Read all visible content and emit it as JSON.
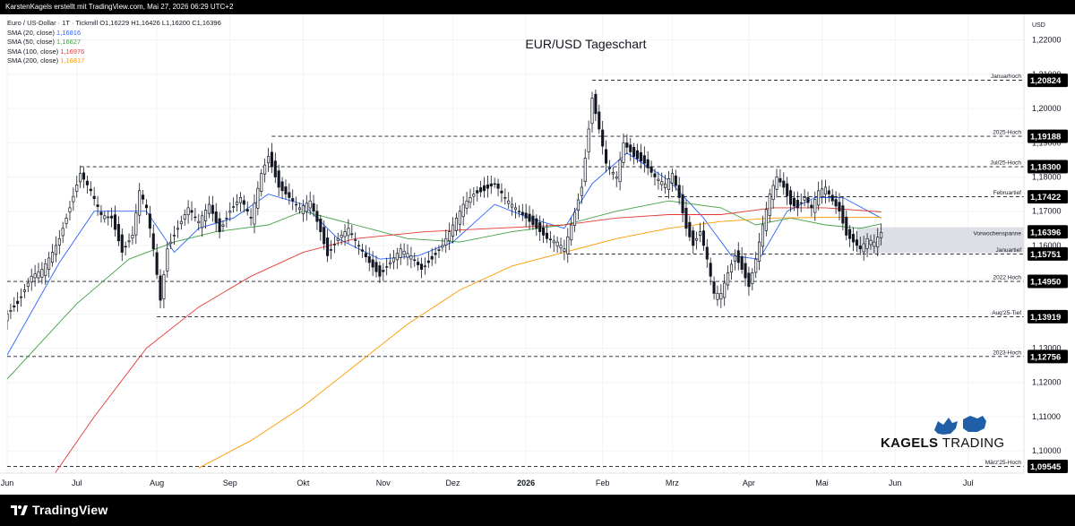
{
  "header": {
    "credit": "KarstenKagels erstellt mit TradingView.com, Mai 27, 2026 06:29 UTC+2"
  },
  "legend": {
    "symbol_line": "Euro / US-Dollar · 1T · Tickmill",
    "ohlc": "O1,16229  H1,16426  L1,16200  C1,16396",
    "items": [
      {
        "label": "SMA (20, close)",
        "value": "1,16816",
        "color": "#2962ff"
      },
      {
        "label": "SMA (50, close)",
        "value": "1,16627",
        "color": "#43a047"
      },
      {
        "label": "SMA (100, close)",
        "value": "1,16976",
        "color": "#e53935"
      },
      {
        "label": "SMA (200, close)",
        "value": "1,16817",
        "color": "#ff9800"
      }
    ]
  },
  "footer": {
    "logo_text": "TradingView"
  },
  "brand": {
    "word1": "KAGELS",
    "word2": "TRADING"
  },
  "chart_data": {
    "type": "line",
    "title": "EUR/USD Tageschart",
    "currency_label": "USD",
    "y_ticks": [
      1.1,
      1.11,
      1.12,
      1.13,
      1.14,
      1.15,
      1.16,
      1.17,
      1.18,
      1.19,
      1.2,
      1.21,
      1.22
    ],
    "y_tick_labels": [
      "1,10000",
      "1,11000",
      "1,12000",
      "1,13000",
      "1,14000",
      "1,15000",
      "1,16000",
      "1,17000",
      "1,18000",
      "1,19000",
      "1,20000",
      "1,21000",
      "1,22000"
    ],
    "ylim": [
      1.0935,
      1.2275
    ],
    "x_ticks": [
      {
        "label": "Jun",
        "day": 0
      },
      {
        "label": "Jul",
        "day": 20
      },
      {
        "label": "Aug",
        "day": 43
      },
      {
        "label": "Sep",
        "day": 64
      },
      {
        "label": "Okt",
        "day": 85
      },
      {
        "label": "Nov",
        "day": 108
      },
      {
        "label": "Dez",
        "day": 128
      },
      {
        "label": "2026",
        "day": 149
      },
      {
        "label": "Feb",
        "day": 171
      },
      {
        "label": "Mrz",
        "day": 191
      },
      {
        "label": "Apr",
        "day": 213
      },
      {
        "label": "Mai",
        "day": 234
      },
      {
        "label": "Jun",
        "day": 255
      },
      {
        "label": "Jul",
        "day": 276
      }
    ],
    "xlim": [
      0,
      292
    ],
    "levels": [
      {
        "name": "Januarhoch",
        "value": 1.20824,
        "label": "1,20824",
        "start_day": 168
      },
      {
        "name": "2025-Hoch",
        "value": 1.19188,
        "label": "1,19188",
        "start_day": 76
      },
      {
        "name": "Jul/25-Hoch",
        "value": 1.183,
        "label": "1,18300",
        "start_day": 21
      },
      {
        "name": "Februartief",
        "value": 1.17422,
        "label": "1,17422",
        "start_day": 187
      },
      {
        "name": "Januartief",
        "value": 1.15751,
        "label": "1,15751",
        "start_day": 161
      },
      {
        "name": "2022 Hoch",
        "value": 1.1495,
        "label": "1,14950",
        "start_day": 0
      },
      {
        "name": "Aug'25-Tief",
        "value": 1.13919,
        "label": "1,13919",
        "start_day": 43
      },
      {
        "name": "2023-Hoch",
        "value": 1.12756,
        "label": "1,12756",
        "start_day": 0
      },
      {
        "name": "März'25-Hoch",
        "value": 1.09545,
        "label": "1,09545",
        "start_day": 0
      }
    ],
    "current_price": {
      "value": 1.16396,
      "label": "1,16396"
    },
    "range_box": {
      "name": "Vorwochenspanne",
      "start_day": 244,
      "end_day": 253,
      "low": 1.1578,
      "high": 1.1653
    },
    "price_anchors": [
      {
        "day": 0,
        "value": 1.14
      },
      {
        "day": 3,
        "value": 1.143
      },
      {
        "day": 7,
        "value": 1.151
      },
      {
        "day": 10,
        "value": 1.153
      },
      {
        "day": 13,
        "value": 1.158
      },
      {
        "day": 15,
        "value": 1.162
      },
      {
        "day": 18,
        "value": 1.171
      },
      {
        "day": 21,
        "value": 1.181
      },
      {
        "day": 24,
        "value": 1.176
      },
      {
        "day": 27,
        "value": 1.169
      },
      {
        "day": 30,
        "value": 1.168
      },
      {
        "day": 33,
        "value": 1.158
      },
      {
        "day": 36,
        "value": 1.163
      },
      {
        "day": 38,
        "value": 1.176
      },
      {
        "day": 40,
        "value": 1.171
      },
      {
        "day": 42,
        "value": 1.159
      },
      {
        "day": 44,
        "value": 1.144
      },
      {
        "day": 46,
        "value": 1.159
      },
      {
        "day": 49,
        "value": 1.165
      },
      {
        "day": 52,
        "value": 1.171
      },
      {
        "day": 55,
        "value": 1.167
      },
      {
        "day": 58,
        "value": 1.172
      },
      {
        "day": 61,
        "value": 1.164
      },
      {
        "day": 64,
        "value": 1.17
      },
      {
        "day": 67,
        "value": 1.174
      },
      {
        "day": 70,
        "value": 1.168
      },
      {
        "day": 73,
        "value": 1.181
      },
      {
        "day": 75,
        "value": 1.186
      },
      {
        "day": 78,
        "value": 1.177
      },
      {
        "day": 81,
        "value": 1.174
      },
      {
        "day": 84,
        "value": 1.171
      },
      {
        "day": 87,
        "value": 1.173
      },
      {
        "day": 90,
        "value": 1.164
      },
      {
        "day": 92,
        "value": 1.157
      },
      {
        "day": 95,
        "value": 1.162
      },
      {
        "day": 98,
        "value": 1.165
      },
      {
        "day": 101,
        "value": 1.16
      },
      {
        "day": 104,
        "value": 1.155
      },
      {
        "day": 107,
        "value": 1.151
      },
      {
        "day": 110,
        "value": 1.155
      },
      {
        "day": 113,
        "value": 1.159
      },
      {
        "day": 116,
        "value": 1.157
      },
      {
        "day": 119,
        "value": 1.153
      },
      {
        "day": 122,
        "value": 1.156
      },
      {
        "day": 125,
        "value": 1.16
      },
      {
        "day": 128,
        "value": 1.166
      },
      {
        "day": 131,
        "value": 1.172
      },
      {
        "day": 134,
        "value": 1.175
      },
      {
        "day": 137,
        "value": 1.176
      },
      {
        "day": 140,
        "value": 1.178
      },
      {
        "day": 143,
        "value": 1.174
      },
      {
        "day": 146,
        "value": 1.171
      },
      {
        "day": 149,
        "value": 1.168
      },
      {
        "day": 152,
        "value": 1.165
      },
      {
        "day": 155,
        "value": 1.162
      },
      {
        "day": 158,
        "value": 1.161
      },
      {
        "day": 160,
        "value": 1.159
      },
      {
        "day": 162,
        "value": 1.166
      },
      {
        "day": 165,
        "value": 1.177
      },
      {
        "day": 167,
        "value": 1.194
      },
      {
        "day": 168,
        "value": 1.203
      },
      {
        "day": 170,
        "value": 1.194
      },
      {
        "day": 172,
        "value": 1.184
      },
      {
        "day": 175,
        "value": 1.18
      },
      {
        "day": 177,
        "value": 1.19
      },
      {
        "day": 180,
        "value": 1.186
      },
      {
        "day": 183,
        "value": 1.184
      },
      {
        "day": 186,
        "value": 1.18
      },
      {
        "day": 189,
        "value": 1.178
      },
      {
        "day": 191,
        "value": 1.181
      },
      {
        "day": 193,
        "value": 1.174
      },
      {
        "day": 195,
        "value": 1.165
      },
      {
        "day": 197,
        "value": 1.16
      },
      {
        "day": 199,
        "value": 1.164
      },
      {
        "day": 201,
        "value": 1.156
      },
      {
        "day": 203,
        "value": 1.146
      },
      {
        "day": 205,
        "value": 1.146
      },
      {
        "day": 207,
        "value": 1.152
      },
      {
        "day": 209,
        "value": 1.157
      },
      {
        "day": 211,
        "value": 1.153
      },
      {
        "day": 213,
        "value": 1.148
      },
      {
        "day": 215,
        "value": 1.156
      },
      {
        "day": 217,
        "value": 1.166
      },
      {
        "day": 219,
        "value": 1.175
      },
      {
        "day": 221,
        "value": 1.18
      },
      {
        "day": 223,
        "value": 1.177
      },
      {
        "day": 225,
        "value": 1.172
      },
      {
        "day": 227,
        "value": 1.171
      },
      {
        "day": 229,
        "value": 1.174
      },
      {
        "day": 231,
        "value": 1.171
      },
      {
        "day": 233,
        "value": 1.176
      },
      {
        "day": 235,
        "value": 1.177
      },
      {
        "day": 237,
        "value": 1.173
      },
      {
        "day": 239,
        "value": 1.17
      },
      {
        "day": 241,
        "value": 1.163
      },
      {
        "day": 243,
        "value": 1.161
      },
      {
        "day": 245,
        "value": 1.159
      },
      {
        "day": 247,
        "value": 1.162
      },
      {
        "day": 249,
        "value": 1.161
      },
      {
        "day": 251,
        "value": 1.1638
      }
    ],
    "sma": [
      {
        "name": "SMA (20, close)",
        "color": "#2962ff",
        "points": [
          [
            0,
            1.128
          ],
          [
            15,
            1.155
          ],
          [
            25,
            1.17
          ],
          [
            40,
            1.17
          ],
          [
            48,
            1.158
          ],
          [
            55,
            1.165
          ],
          [
            65,
            1.168
          ],
          [
            75,
            1.175
          ],
          [
            85,
            1.172
          ],
          [
            95,
            1.162
          ],
          [
            107,
            1.156
          ],
          [
            118,
            1.157
          ],
          [
            128,
            1.161
          ],
          [
            140,
            1.172
          ],
          [
            150,
            1.168
          ],
          [
            160,
            1.165
          ],
          [
            168,
            1.178
          ],
          [
            178,
            1.187
          ],
          [
            190,
            1.179
          ],
          [
            200,
            1.168
          ],
          [
            208,
            1.157
          ],
          [
            216,
            1.156
          ],
          [
            224,
            1.17
          ],
          [
            232,
            1.174
          ],
          [
            240,
            1.174
          ],
          [
            251,
            1.168
          ]
        ]
      },
      {
        "name": "SMA (50, close)",
        "color": "#43a047",
        "points": [
          [
            0,
            1.121
          ],
          [
            20,
            1.143
          ],
          [
            35,
            1.156
          ],
          [
            48,
            1.161
          ],
          [
            60,
            1.164
          ],
          [
            75,
            1.166
          ],
          [
            85,
            1.17
          ],
          [
            100,
            1.166
          ],
          [
            115,
            1.162
          ],
          [
            130,
            1.161
          ],
          [
            145,
            1.164
          ],
          [
            160,
            1.166
          ],
          [
            175,
            1.17
          ],
          [
            190,
            1.173
          ],
          [
            205,
            1.171
          ],
          [
            215,
            1.166
          ],
          [
            225,
            1.168
          ],
          [
            235,
            1.166
          ],
          [
            245,
            1.165
          ],
          [
            251,
            1.1663
          ]
        ]
      },
      {
        "name": "SMA (100, close)",
        "color": "#e53935",
        "points": [
          [
            10,
            1.088
          ],
          [
            25,
            1.11
          ],
          [
            40,
            1.13
          ],
          [
            55,
            1.142
          ],
          [
            70,
            1.151
          ],
          [
            85,
            1.158
          ],
          [
            100,
            1.162
          ],
          [
            120,
            1.164
          ],
          [
            140,
            1.165
          ],
          [
            160,
            1.166
          ],
          [
            175,
            1.168
          ],
          [
            190,
            1.169
          ],
          [
            205,
            1.169
          ],
          [
            220,
            1.171
          ],
          [
            235,
            1.171
          ],
          [
            251,
            1.1698
          ]
        ]
      },
      {
        "name": "SMA (200, close)",
        "color": "#ff9800",
        "points": [
          [
            55,
            1.095
          ],
          [
            70,
            1.103
          ],
          [
            85,
            1.113
          ],
          [
            100,
            1.125
          ],
          [
            115,
            1.137
          ],
          [
            130,
            1.147
          ],
          [
            145,
            1.154
          ],
          [
            160,
            1.158
          ],
          [
            175,
            1.162
          ],
          [
            190,
            1.165
          ],
          [
            205,
            1.167
          ],
          [
            220,
            1.168
          ],
          [
            235,
            1.1682
          ],
          [
            251,
            1.1682
          ]
        ]
      }
    ]
  }
}
